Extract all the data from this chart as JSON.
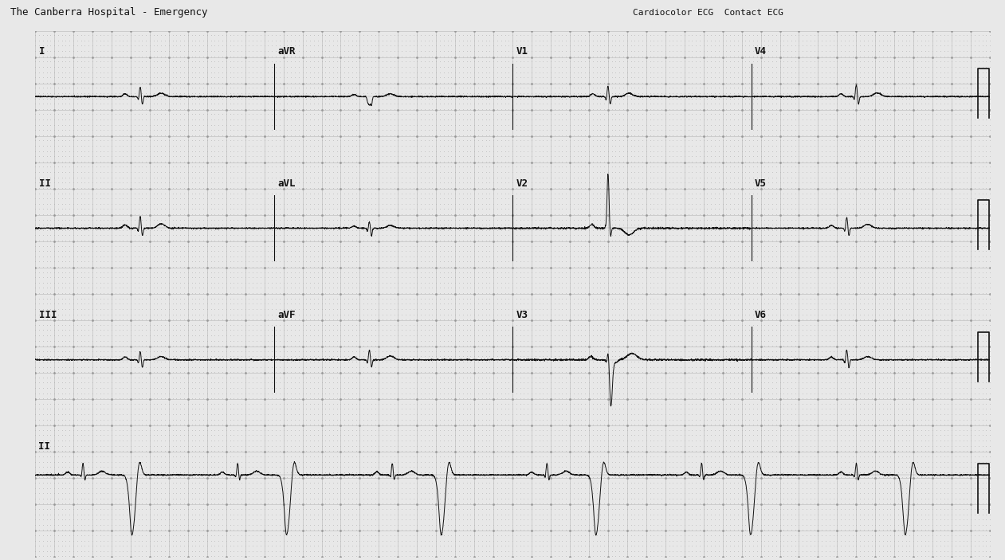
{
  "title_left": "The Canberra Hospital - Emergency",
  "title_right": "Cardiocolor ECG  Contact ECG",
  "bg_color": "#e8e8e8",
  "grid_dot_color": "#aaaaaa",
  "grid_major_color": "#888888",
  "ecg_color": "#111111",
  "header_bg": "#d0d0d0",
  "lead_labels_row1": [
    "I",
    "aVR",
    "V1",
    "V4"
  ],
  "lead_labels_row2": [
    "II",
    "aVL",
    "V2",
    "V5"
  ],
  "lead_labels_row3": [
    "III",
    "aVF",
    "V3",
    "V6"
  ],
  "lead_label_bottom": "II",
  "n_cols": 4,
  "n_rows": 4,
  "seg_duration": 2.5,
  "fs": 500
}
